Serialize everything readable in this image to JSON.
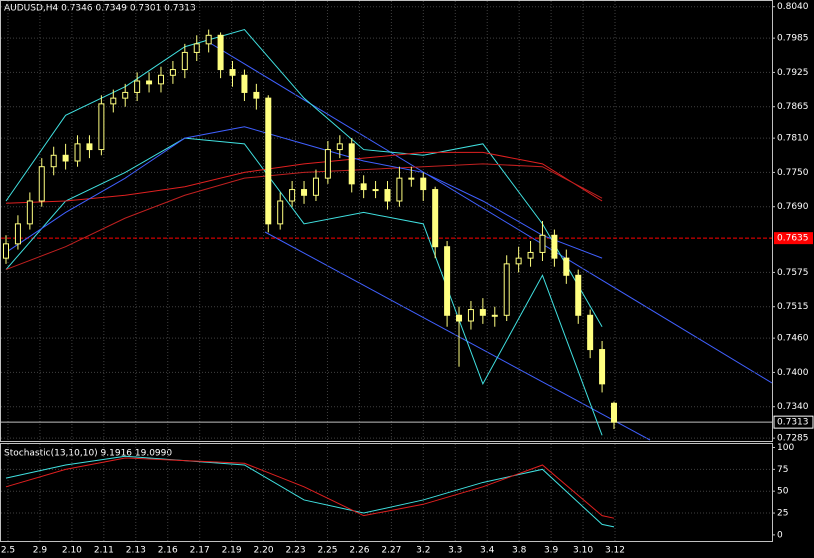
{
  "chart_data": {
    "type": "candlestick",
    "title": "AUDUSD,H4  0.7346 0.7349 0.7301 0.7313",
    "categories": [
      "2.5",
      "2.9",
      "2.10",
      "2.11",
      "2.13",
      "2.16",
      "2.17",
      "2.19",
      "2.20",
      "2.23",
      "2.25",
      "2.26",
      "2.27",
      "3.2",
      "3.3",
      "3.4",
      "3.8",
      "3.9",
      "3.10",
      "3.12"
    ],
    "open": [
      0.76,
      0.7625,
      0.766,
      0.77,
      0.776,
      0.778,
      0.777,
      0.78,
      0.779,
      0.787,
      0.788,
      0.789,
      0.791,
      0.7905,
      0.792,
      0.793,
      0.796,
      0.7975,
      0.799,
      0.793,
      0.792,
      0.789,
      0.788,
      0.766,
      0.77,
      0.772,
      0.771,
      0.774,
      0.779,
      0.78,
      0.773,
      0.772,
      0.772,
      0.77,
      0.774,
      0.774,
      0.772,
      0.762,
      0.75,
      0.749,
      0.751,
      0.75,
      0.75,
      0.759,
      0.76,
      0.761,
      0.764,
      0.76,
      0.757,
      0.75,
      0.744,
      0.7346
    ],
    "high": [
      0.764,
      0.7675,
      0.7715,
      0.7775,
      0.7795,
      0.78,
      0.7815,
      0.7815,
      0.7885,
      0.7895,
      0.7905,
      0.7925,
      0.7925,
      0.7935,
      0.7945,
      0.7975,
      0.799,
      0.8,
      0.7995,
      0.7945,
      0.793,
      0.7905,
      0.7885,
      0.7715,
      0.7735,
      0.7735,
      0.7755,
      0.7805,
      0.7815,
      0.781,
      0.7745,
      0.7735,
      0.7735,
      0.776,
      0.776,
      0.775,
      0.7725,
      0.763,
      0.7515,
      0.7525,
      0.753,
      0.7515,
      0.7605,
      0.762,
      0.763,
      0.7665,
      0.765,
      0.7615,
      0.758,
      0.751,
      0.7455,
      0.7349
    ],
    "low": [
      0.759,
      0.7615,
      0.765,
      0.769,
      0.7745,
      0.7755,
      0.776,
      0.7775,
      0.778,
      0.7855,
      0.7865,
      0.7875,
      0.789,
      0.789,
      0.7905,
      0.7915,
      0.7945,
      0.796,
      0.7915,
      0.79,
      0.7875,
      0.786,
      0.7645,
      0.765,
      0.769,
      0.7695,
      0.77,
      0.773,
      0.7775,
      0.7715,
      0.7705,
      0.7705,
      0.7685,
      0.769,
      0.7725,
      0.77,
      0.76,
      0.748,
      0.741,
      0.7475,
      0.7485,
      0.748,
      0.749,
      0.7575,
      0.7585,
      0.7595,
      0.7585,
      0.7555,
      0.7485,
      0.7425,
      0.7365,
      0.7301
    ],
    "close": [
      0.7625,
      0.766,
      0.77,
      0.776,
      0.778,
      0.777,
      0.78,
      0.779,
      0.787,
      0.788,
      0.789,
      0.791,
      0.7905,
      0.792,
      0.793,
      0.796,
      0.7975,
      0.799,
      0.793,
      0.792,
      0.789,
      0.788,
      0.766,
      0.77,
      0.772,
      0.771,
      0.774,
      0.779,
      0.78,
      0.773,
      0.772,
      0.772,
      0.77,
      0.774,
      0.774,
      0.772,
      0.762,
      0.75,
      0.749,
      0.751,
      0.75,
      0.75,
      0.759,
      0.76,
      0.761,
      0.764,
      0.76,
      0.757,
      0.75,
      0.744,
      0.738,
      0.7313
    ],
    "color": "#ffff80",
    "ylim": [
      0.728,
      0.805
    ],
    "yticks": [
      {
        "value": 0.804,
        "label": "0.8040"
      },
      0.7985,
      0.7925,
      0.7865,
      {
        "value": 0.781,
        "label": "0.7810"
      },
      {
        "value": 0.775,
        "label": "0.7750"
      },
      {
        "value": 0.769,
        "label": "0.7690"
      },
      0.7575,
      0.7515,
      {
        "value": 0.746,
        "label": "0.7460"
      },
      {
        "value": 0.74,
        "label": "0.7400"
      },
      {
        "value": 0.734,
        "label": "0.7340"
      },
      0.7285
    ],
    "grid": true,
    "price_lines": [
      {
        "value": 0.7635,
        "color": "#ff0000"
      },
      {
        "value": 0.7313,
        "color": "#c0c0c0"
      }
    ],
    "overlays": [
      {
        "color": "#40e0e0",
        "x": [
          0,
          5,
          10,
          15,
          20,
          25,
          30,
          35,
          40,
          45,
          50
        ],
        "values": [
          0.77,
          0.785,
          0.79,
          0.797,
          0.8,
          0.788,
          0.779,
          0.778,
          0.78,
          0.766,
          0.748
        ]
      },
      {
        "color": "#40e0e0",
        "x": [
          0,
          5,
          10,
          15,
          20,
          25,
          30,
          35,
          40,
          45,
          50
        ],
        "values": [
          0.758,
          0.77,
          0.775,
          0.781,
          0.78,
          0.766,
          0.768,
          0.766,
          0.738,
          0.757,
          0.729
        ]
      },
      {
        "color": "#e02020",
        "x": [
          0,
          5,
          10,
          15,
          20,
          25,
          30,
          35,
          40,
          45,
          50
        ],
        "values": [
          0.7696,
          0.77,
          0.771,
          0.7725,
          0.775,
          0.7765,
          0.7775,
          0.7785,
          0.7785,
          0.7765,
          0.77
        ]
      },
      {
        "color": "#c02020",
        "x": [
          0,
          5,
          10,
          15,
          20,
          25,
          30,
          35,
          40,
          45,
          50
        ],
        "values": [
          0.758,
          0.762,
          0.767,
          0.771,
          0.774,
          0.775,
          0.7755,
          0.776,
          0.7765,
          0.776,
          0.7705
        ]
      },
      {
        "color": "#4060ff",
        "x": [
          0,
          5,
          10,
          15,
          20,
          25,
          30,
          35,
          40,
          45,
          50
        ],
        "values": [
          0.761,
          0.768,
          0.774,
          0.781,
          0.783,
          0.78,
          0.777,
          0.775,
          0.77,
          0.764,
          0.76
        ]
      }
    ],
    "stochastic": {
      "title": "Stochastic(13,10,10)  9.1916  19.0990",
      "ylim": [
        -7,
        104
      ],
      "yticks": [
        100,
        75,
        50,
        25,
        0
      ],
      "series": [
        {
          "color": "#40e0e0",
          "x": [
            0,
            5,
            10,
            15,
            20,
            25,
            30,
            35,
            40,
            45,
            50,
            51
          ],
          "values": [
            65,
            80,
            90,
            85,
            80,
            40,
            25,
            40,
            60,
            75,
            12,
            9.1916
          ]
        },
        {
          "color": "#e02020",
          "x": [
            0,
            5,
            10,
            15,
            20,
            25,
            30,
            35,
            40,
            45,
            50,
            51
          ],
          "values": [
            55,
            75,
            88,
            85,
            82,
            55,
            22,
            35,
            55,
            80,
            22,
            19.099
          ]
        }
      ]
    }
  }
}
